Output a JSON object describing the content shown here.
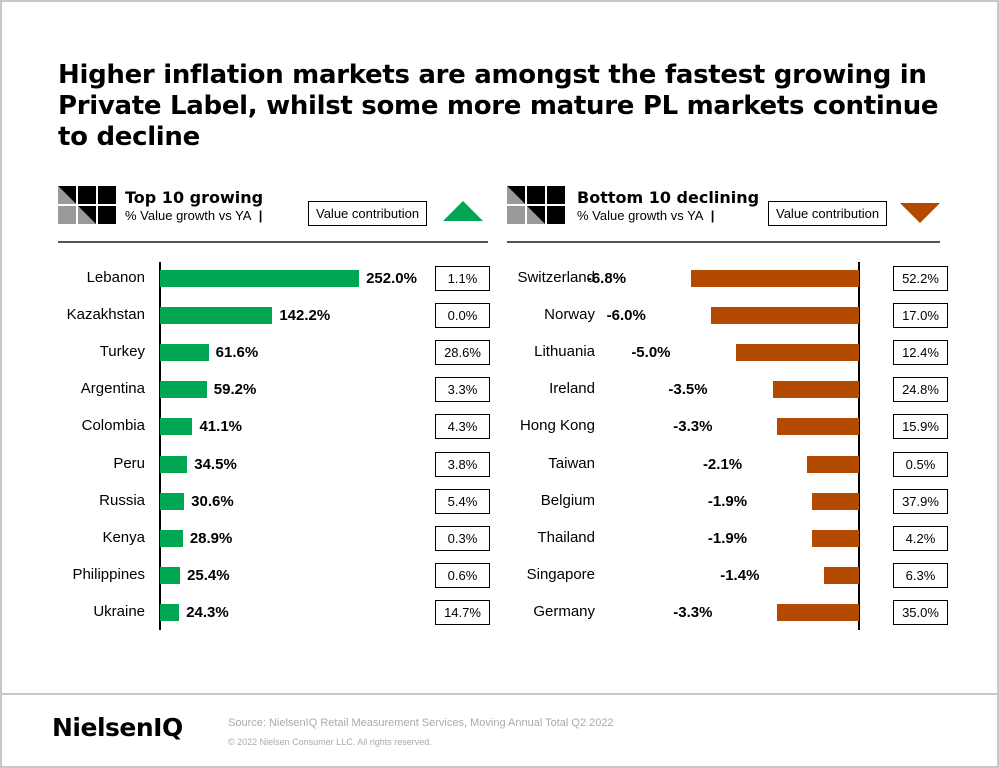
{
  "title": "Higher inflation markets are amongst the fastest growing in Private Label, whilst some more mature PL markets continue to decline",
  "footer": {
    "logo": "NielsenIQ",
    "source": "Source: NielsenIQ Retail Measurement Services, Moving Annual Total Q2 2022",
    "copyright": "© 2022 Nielsen Consumer LLC. All rights reserved."
  },
  "colors": {
    "growing": "#00a651",
    "declining": "#b34a00",
    "frame": "#c8c8c8"
  },
  "chart_data": [
    {
      "type": "bar",
      "orientation": "horizontal",
      "title": "Top 10 growing",
      "subtitle": "% Value growth vs YA",
      "contribution_label": "Value contribution",
      "indicator": "triangle-up-icon",
      "categories": [
        "Lebanon",
        "Kazakhstan",
        "Turkey",
        "Argentina",
        "Colombia",
        "Peru",
        "Russia",
        "Kenya",
        "Philippines",
        "Ukraine"
      ],
      "values": [
        252.0,
        142.2,
        61.6,
        59.2,
        41.1,
        34.5,
        30.6,
        28.9,
        25.4,
        24.3
      ],
      "value_labels": [
        "252.0%",
        "142.2%",
        "61.6%",
        "59.2%",
        "41.1%",
        "34.5%",
        "30.6%",
        "28.9%",
        "25.4%",
        "24.3%"
      ],
      "contribution": [
        "1.1%",
        "0.0%",
        "28.6%",
        "3.3%",
        "4.3%",
        "3.8%",
        "5.4%",
        "0.3%",
        "0.6%",
        "14.7%"
      ]
    },
    {
      "type": "bar",
      "orientation": "horizontal",
      "title": "Bottom 10 declining",
      "subtitle": "% Value growth vs YA",
      "contribution_label": "Value contribution",
      "indicator": "triangle-down-icon",
      "categories": [
        "Switzerland",
        "Norway",
        "Lithuania",
        "Ireland",
        "Hong Kong",
        "Taiwan",
        "Belgium",
        "Thailand",
        "Singapore",
        "Germany"
      ],
      "values": [
        -6.8,
        -6.0,
        -5.0,
        -3.5,
        -3.3,
        -2.1,
        -1.9,
        -1.9,
        -1.4,
        -3.3
      ],
      "value_labels": [
        "-6.8%",
        "-6.0%",
        "-5.0%",
        "-3.5%",
        "-3.3%",
        "-2.1%",
        "-1.9%",
        "-1.9%",
        "-1.4%",
        "-3.3%"
      ],
      "contribution": [
        "52.2%",
        "17.0%",
        "12.4%",
        "24.8%",
        "15.9%",
        "0.5%",
        "37.9%",
        "4.2%",
        "6.3%",
        "35.0%"
      ]
    }
  ]
}
